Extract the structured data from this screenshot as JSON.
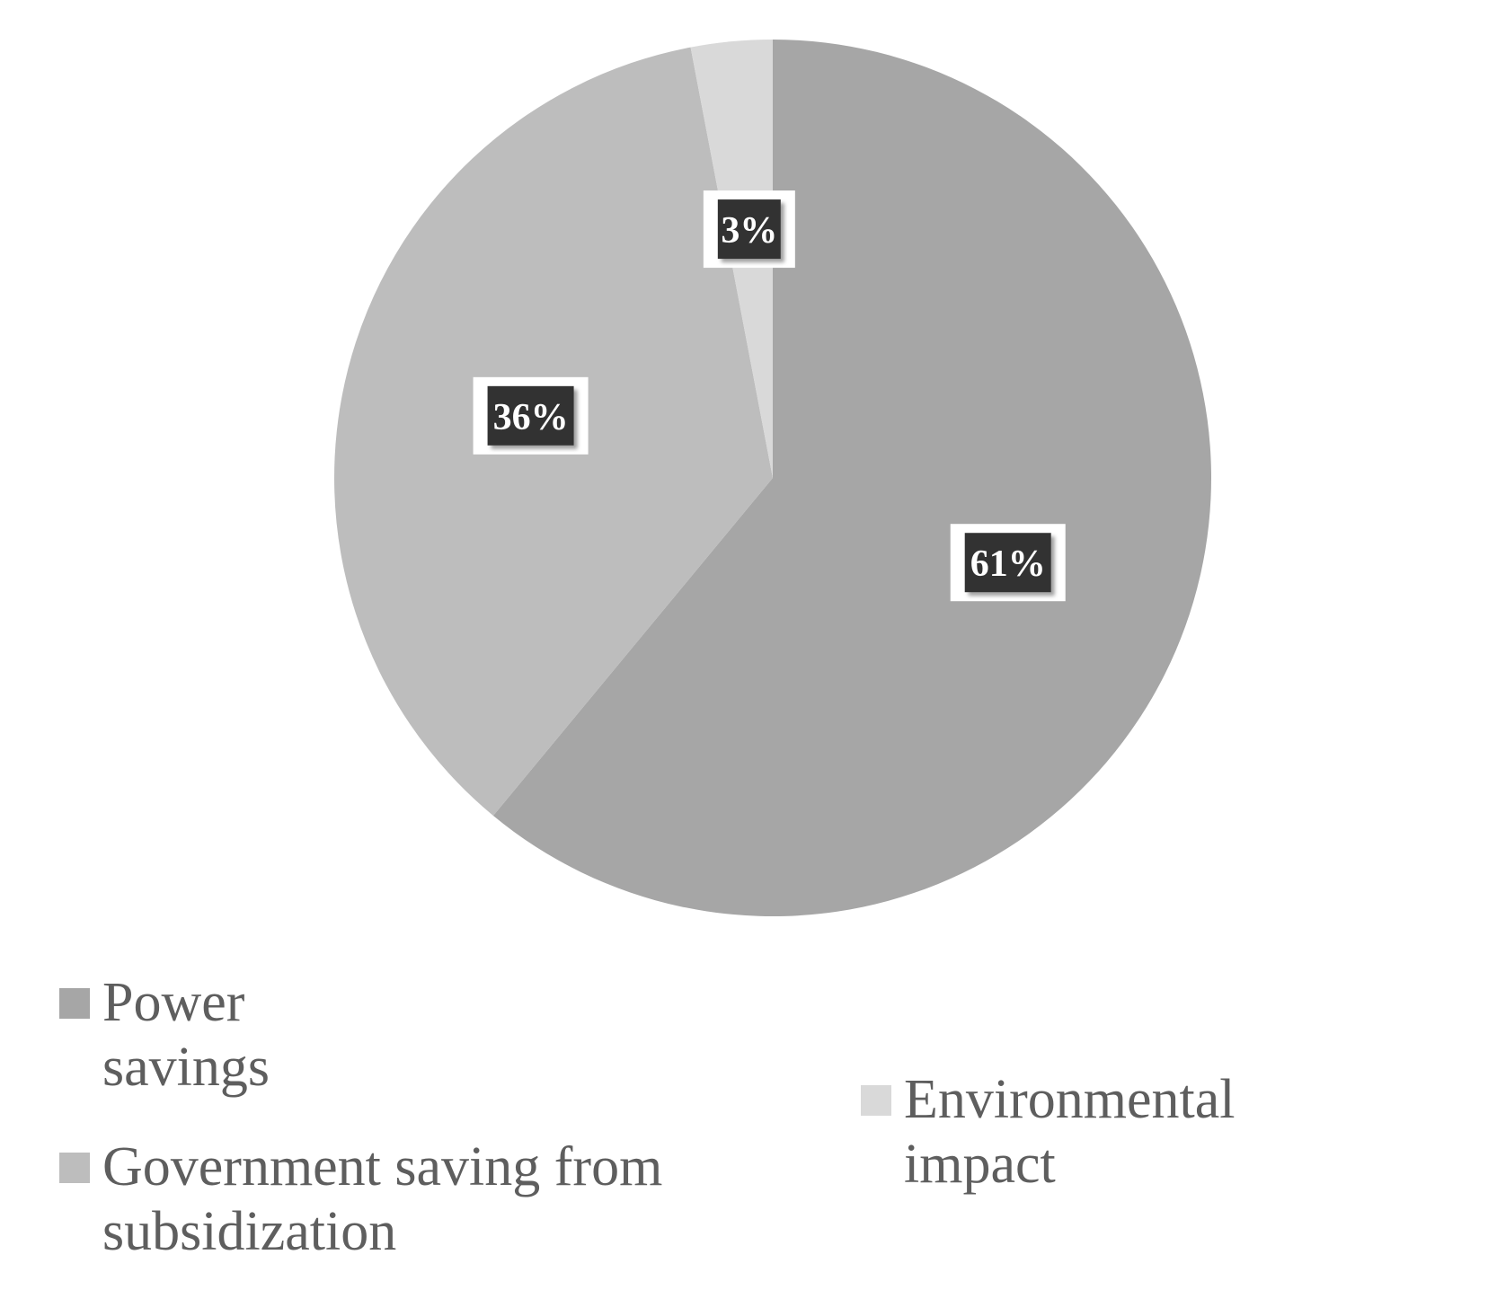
{
  "chart_data": {
    "type": "pie",
    "title": "",
    "series": [
      {
        "values": [
          61,
          36,
          3
        ],
        "labels": [
          "61%",
          "36%",
          "3%"
        ]
      }
    ],
    "categories": [
      "Power savings",
      "Government saving from subsidization",
      "Environmental impact"
    ],
    "colors": [
      "#a6a6a6",
      "#bdbdbd",
      "#d9d9d9"
    ],
    "start_angle": "12 o'clock",
    "direction": "clockwise",
    "legend_placement": "bottom"
  }
}
